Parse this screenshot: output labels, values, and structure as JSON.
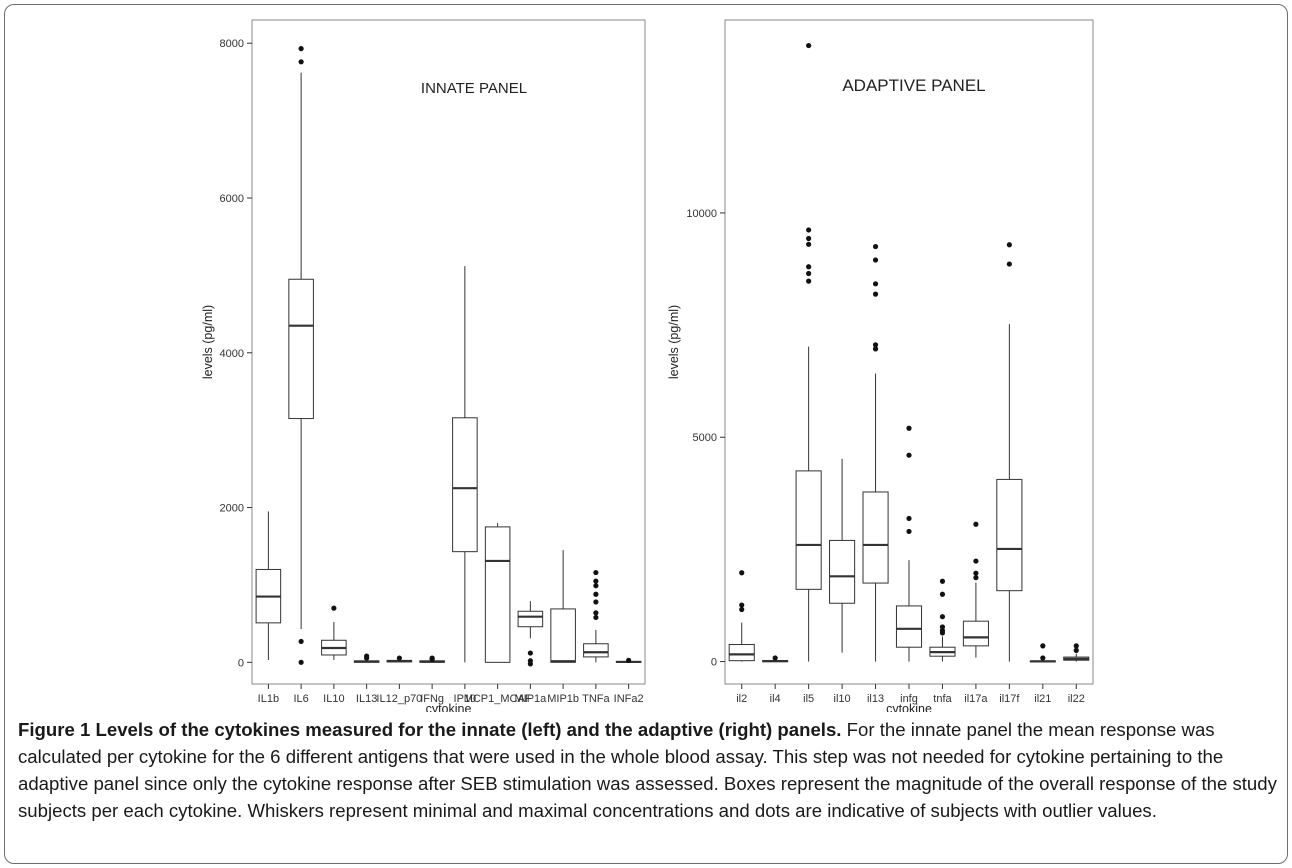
{
  "chart_data": [
    {
      "type": "boxplot",
      "panel_label": "INNATE PANEL",
      "xlabel": "cytokine",
      "ylabel": "levels (pg/ml)",
      "ylim": [
        -280,
        8300
      ],
      "yticks": [
        0,
        2000,
        4000,
        6000,
        8000
      ],
      "grid": false,
      "categories": [
        "IL1b",
        "IL6",
        "IL10",
        "IL13",
        "IL12_p70",
        "IFNg",
        "IP10",
        "MCP1_MCAF",
        "MIP1a",
        "MIP1b",
        "TNFa",
        "INFa2"
      ],
      "boxes": [
        {
          "min": 30,
          "q1": 510,
          "median": 850,
          "q3": 1200,
          "max": 1950,
          "outliers": []
        },
        {
          "min": 430,
          "q1": 3150,
          "median": 4350,
          "q3": 4950,
          "max": 7620,
          "outliers": [
            7930,
            7760,
            270,
            0
          ]
        },
        {
          "min": 30,
          "q1": 95,
          "median": 185,
          "q3": 285,
          "max": 520,
          "outliers": [
            700
          ]
        },
        {
          "min": 0,
          "q1": 0,
          "median": 10,
          "q3": 20,
          "max": 45,
          "outliers": [
            80,
            55
          ]
        },
        {
          "min": 0,
          "q1": 5,
          "median": 15,
          "q3": 25,
          "max": 40,
          "outliers": [
            55
          ]
        },
        {
          "min": 0,
          "q1": 0,
          "median": 8,
          "q3": 20,
          "max": 30,
          "outliers": [
            55,
            40
          ]
        },
        {
          "min": 0,
          "q1": 1430,
          "median": 2250,
          "q3": 3160,
          "max": 5120,
          "outliers": []
        },
        {
          "min": 0,
          "q1": 0,
          "median": 1310,
          "q3": 1750,
          "max": 1800,
          "outliers": []
        },
        {
          "min": 310,
          "q1": 460,
          "median": 590,
          "q3": 660,
          "max": 790,
          "outliers": [
            120,
            20,
            -20
          ]
        },
        {
          "min": 0,
          "q1": 0,
          "median": 15,
          "q3": 690,
          "max": 1450,
          "outliers": []
        },
        {
          "min": 0,
          "q1": 70,
          "median": 130,
          "q3": 240,
          "max": 420,
          "outliers": [
            1160,
            1050,
            990,
            880,
            780,
            640,
            580
          ]
        },
        {
          "min": 0,
          "q1": 0,
          "median": 5,
          "q3": 12,
          "max": 20,
          "outliers": [
            25
          ]
        }
      ]
    },
    {
      "type": "boxplot",
      "panel_label": "ADAPTIVE PANEL",
      "xlabel": "cytokine",
      "ylabel": "levels (pg/ml)",
      "ylim": [
        -500,
        14300
      ],
      "yticks": [
        0,
        5000,
        10000
      ],
      "grid": false,
      "categories": [
        "il2",
        "il4",
        "il5",
        "il10",
        "il13",
        "infg",
        "tnfa",
        "il17a",
        "il17f",
        "il21",
        "il22"
      ],
      "boxes": [
        {
          "min": 0,
          "q1": 20,
          "median": 160,
          "q3": 380,
          "max": 870,
          "outliers": [
            1980,
            1260,
            1160
          ]
        },
        {
          "min": 0,
          "q1": 0,
          "median": 10,
          "q3": 20,
          "max": 40,
          "outliers": [
            80
          ]
        },
        {
          "min": 0,
          "q1": 1610,
          "median": 2600,
          "q3": 4250,
          "max": 7020,
          "outliers": [
            13730,
            9620,
            9430,
            9300,
            8800,
            8650,
            8480
          ]
        },
        {
          "min": 200,
          "q1": 1300,
          "median": 1900,
          "q3": 2700,
          "max": 4520,
          "outliers": []
        },
        {
          "min": 0,
          "q1": 1750,
          "median": 2600,
          "q3": 3780,
          "max": 6420,
          "outliers": [
            9250,
            8950,
            8420,
            8190,
            7060,
            6970
          ]
        },
        {
          "min": 0,
          "q1": 320,
          "median": 730,
          "q3": 1240,
          "max": 2260,
          "outliers": [
            5200,
            4600,
            3190,
            2900
          ]
        },
        {
          "min": 0,
          "q1": 120,
          "median": 210,
          "q3": 320,
          "max": 560,
          "outliers": [
            1790,
            1500,
            1000,
            770,
            690,
            640
          ]
        },
        {
          "min": 90,
          "q1": 350,
          "median": 540,
          "q3": 900,
          "max": 1760,
          "outliers": [
            3060,
            2240,
            1970,
            1870
          ]
        },
        {
          "min": 0,
          "q1": 1580,
          "median": 2510,
          "q3": 4060,
          "max": 7520,
          "outliers": [
            9290,
            8860
          ]
        },
        {
          "min": 0,
          "q1": 0,
          "median": 5,
          "q3": 15,
          "max": 30,
          "outliers": [
            350,
            80
          ]
        },
        {
          "min": 0,
          "q1": 30,
          "median": 60,
          "q3": 100,
          "max": 180,
          "outliers": [
            350,
            250
          ]
        }
      ]
    }
  ],
  "caption": {
    "title": "Figure 1 Levels of the cytokines measured for the innate (left) and the adaptive (right) panels.",
    "body": " For the innate panel the mean response was calculated per cytokine for the 6 different antigens that were used in the whole blood assay. This step was not needed for cytokine pertaining to the adaptive panel since only the cytokine response after SEB stimulation was assessed. Boxes represent the magnitude of the overall response of the study subjects per each cytokine. Whiskers represent minimal and maximal concentrations and dots are indicative of subjects with outlier values."
  }
}
